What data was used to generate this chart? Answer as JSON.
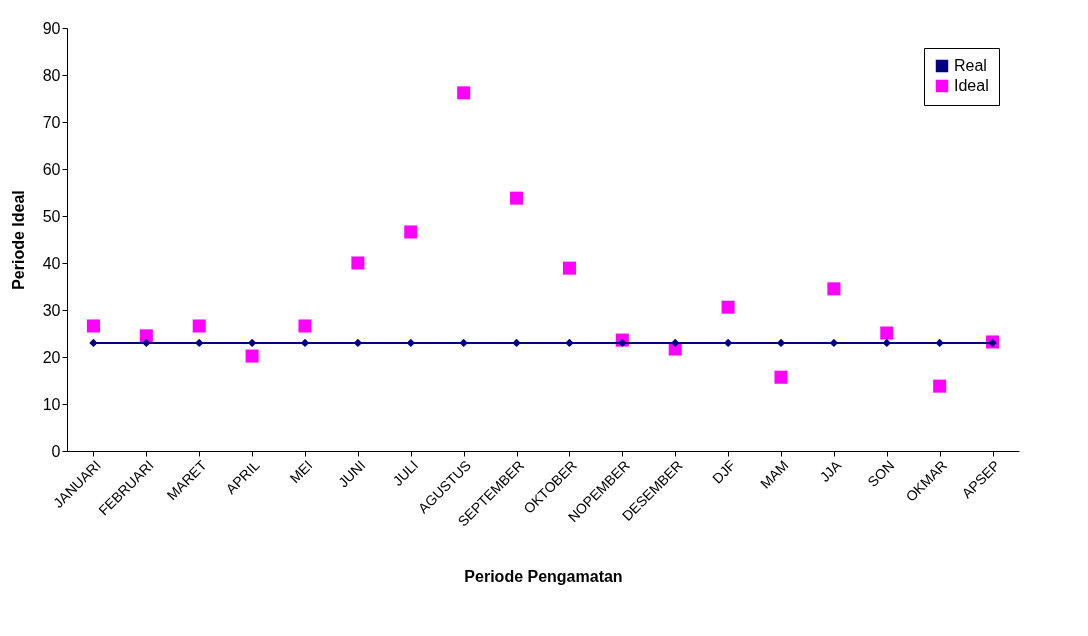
{
  "chart_data": {
    "type": "line",
    "xlabel": "Periode Pengamatan",
    "ylabel": "Periode Ideal",
    "categories": [
      "JANUARI",
      "FEBRUARI",
      "MARET",
      "APRIL",
      "MEI",
      "JUNI",
      "JULI",
      "AGUSTUS",
      "SEPTEMBER",
      "OKTOBER",
      "NOPEMBER",
      "DESEMBER",
      "DJF",
      "MAM",
      "JJA",
      "SON",
      "OKMAR",
      "APSEP"
    ],
    "series": [
      {
        "name": "Real",
        "color": "#000080",
        "marker": "diamond",
        "values": [
          23,
          23,
          23,
          23,
          23,
          23,
          23,
          23,
          23,
          23,
          23,
          23,
          23,
          23,
          23,
          23,
          23,
          23
        ]
      },
      {
        "name": "Ideal",
        "type": "scatter",
        "color": "#ff00ff",
        "marker": "square",
        "values": [
          26.6,
          24.5,
          26.6,
          20.2,
          26.6,
          40.0,
          46.6,
          76.2,
          53.8,
          38.9,
          23.6,
          21.7,
          30.6,
          15.7,
          34.5,
          25.1,
          13.8,
          23.2
        ]
      }
    ],
    "ylim": [
      0,
      90
    ],
    "yticks": [
      0,
      10,
      20,
      30,
      40,
      50,
      60,
      70,
      80,
      90
    ],
    "legend": "top right"
  }
}
